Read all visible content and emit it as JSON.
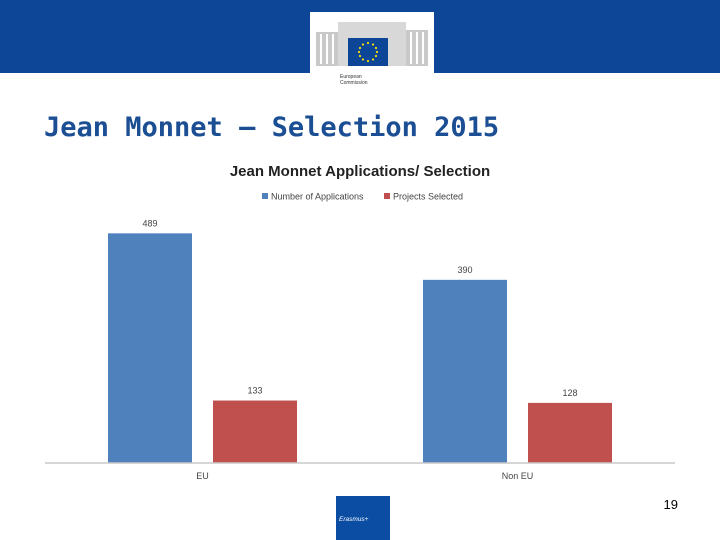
{
  "header": {
    "brand_lines": "European\nCommission",
    "accent_color": "#0d4697"
  },
  "slide": {
    "title": "Jean Monnet – Selection 2015",
    "page_number": "19",
    "footer_logo_text": "Erasmus+"
  },
  "chart_data": {
    "type": "bar",
    "title": "Jean Monnet Applications/ Selection",
    "xlabel": "",
    "ylabel": "",
    "categories": [
      "EU",
      "Non EU"
    ],
    "series": [
      {
        "name": "Number of Applications",
        "values": [
          489,
          390
        ],
        "color": "#4f81bd"
      },
      {
        "name": "Projects Selected",
        "values": [
          133,
          128
        ],
        "color": "#c0504d"
      }
    ],
    "ylim": [
      0,
      560
    ],
    "grid": false,
    "legend": "top"
  }
}
